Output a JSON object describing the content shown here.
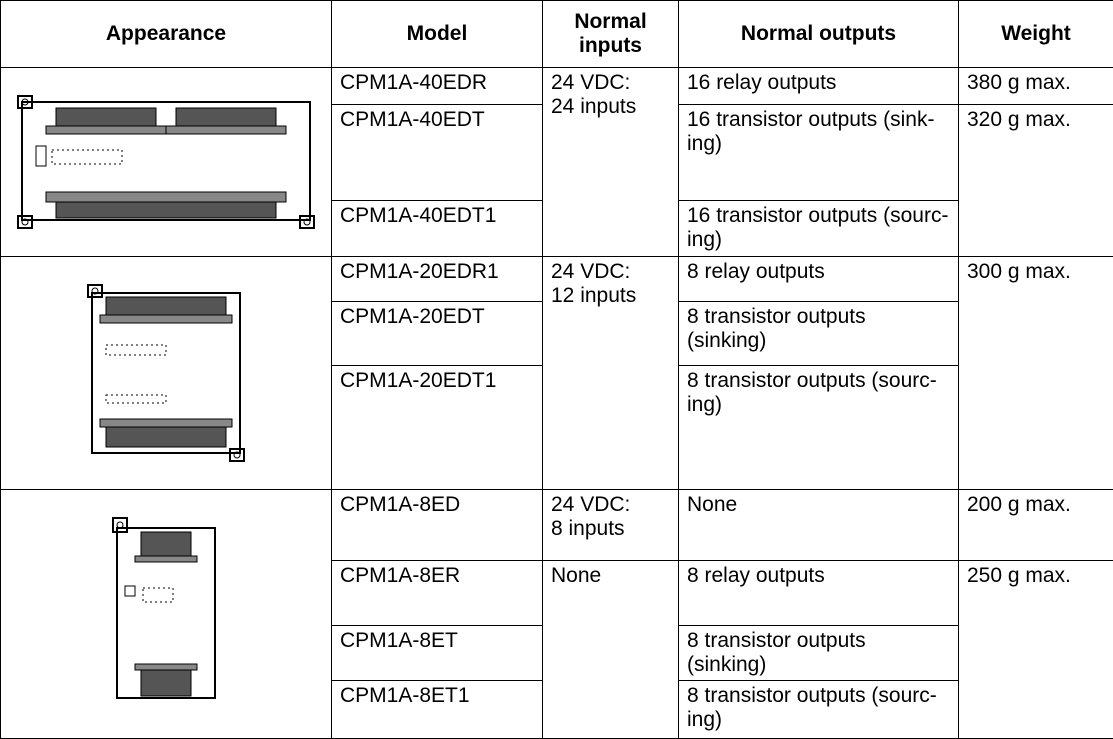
{
  "header": [
    "Appearance",
    "Model",
    "Normal\ninputs",
    "Normal outputs",
    "Weight"
  ],
  "groups": [
    {
      "rows": [
        {
          "model": "CPM1A-40EDR",
          "inputs": "24 VDC:\n24 inputs",
          "outputs": "16 relay outputs",
          "weight": "380 g max."
        },
        {
          "model": "CPM1A-40EDT",
          "outputs": "16 transistor outputs (sink-ing)",
          "weight": "320 g max."
        },
        {
          "model": "CPM1A-40EDT1",
          "outputs": "16 transistor outputs (sourc-ing)"
        }
      ]
    },
    {
      "rows": [
        {
          "model": "CPM1A-20EDR1",
          "inputs": "24 VDC:\n12 inputs",
          "outputs": "8 relay outputs",
          "weight": "300 g max."
        },
        {
          "model": "CPM1A-20EDT",
          "outputs": "8 transistor outputs (sinking)"
        },
        {
          "model": "CPM1A-20EDT1",
          "outputs": "8 transistor outputs (sourc-ing)"
        }
      ]
    },
    {
      "rows": [
        {
          "model": "CPM1A-8ED",
          "inputs": "24 VDC:\n8 inputs",
          "outputs": "None",
          "weight": "200 g max."
        },
        {
          "model": "CPM1A-8ER",
          "inputs": "None",
          "outputs": "8 relay outputs",
          "weight": "250 g max."
        },
        {
          "model": "CPM1A-8ET",
          "outputs": "8 transistor outputs (sinking)"
        },
        {
          "model": "CPM1A-8ET1",
          "outputs": "8 transistor outputs (sourc-ing)"
        }
      ]
    }
  ]
}
